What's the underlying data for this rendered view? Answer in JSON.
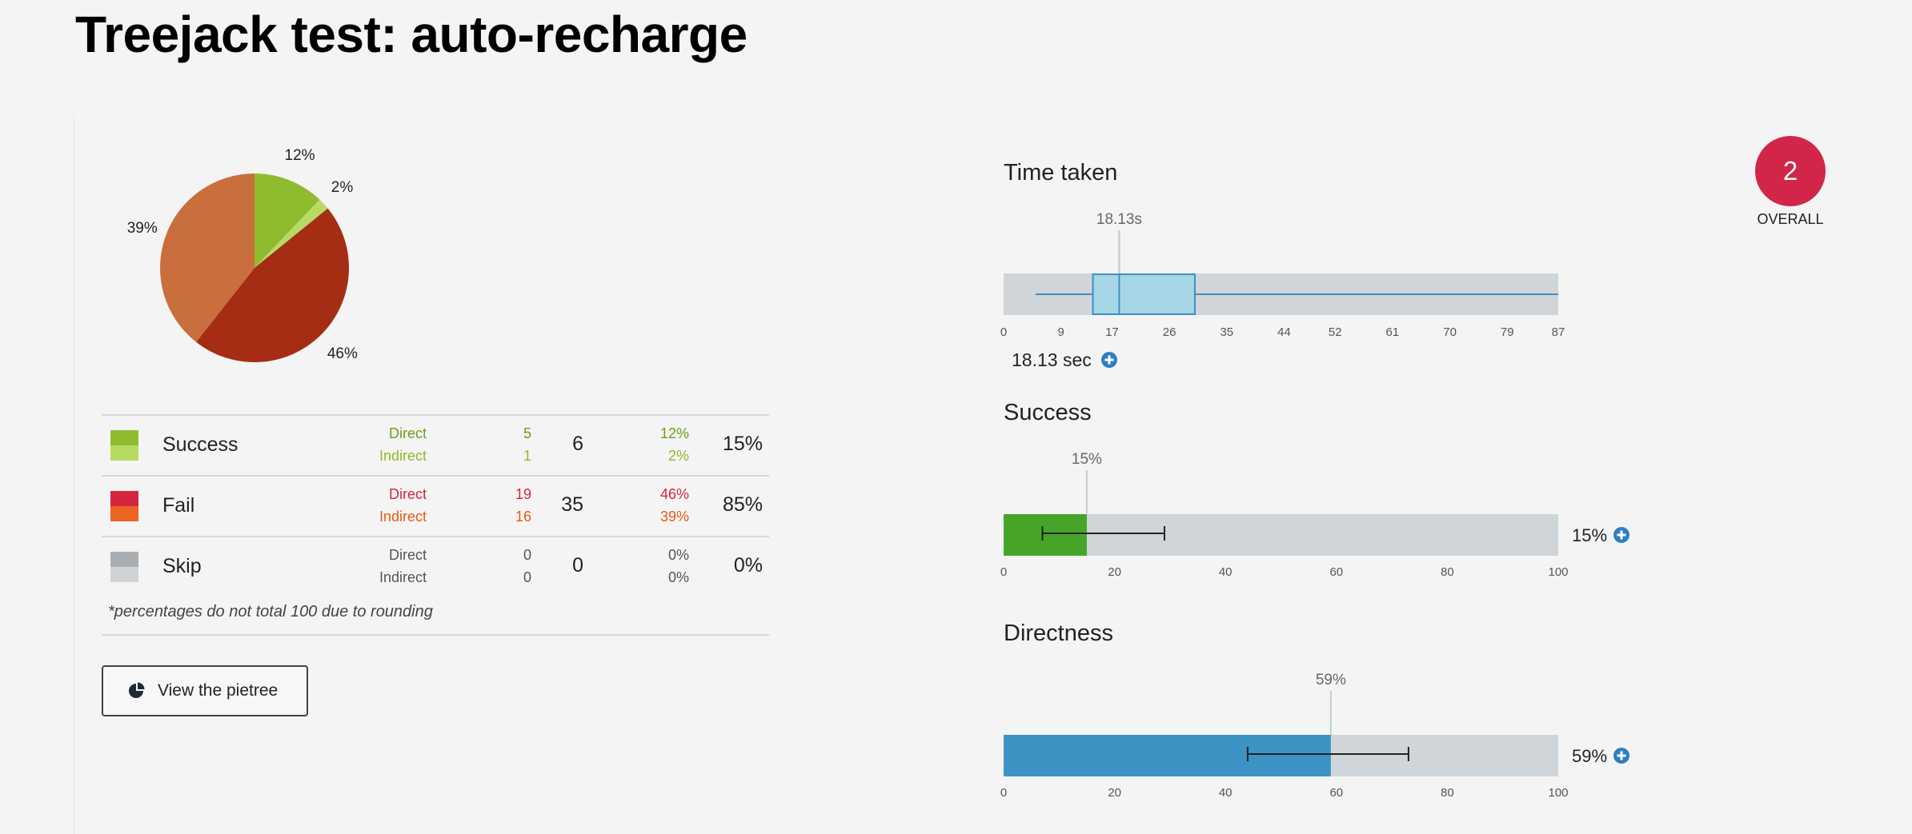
{
  "page": {
    "title": "Treejack test: auto-recharge"
  },
  "pie": {
    "slices": [
      {
        "label": "12%",
        "value": 12,
        "color": "#8fbc2e"
      },
      {
        "label": "2%",
        "value": 2,
        "color": "#b8da63"
      },
      {
        "label": "46%",
        "value": 46,
        "color": "#a52d14"
      },
      {
        "label": "39%",
        "value": 39,
        "color": "#c96e3d"
      }
    ]
  },
  "results": {
    "rows": [
      {
        "label": "Success",
        "swatch": [
          "#8fbc2e",
          "#b8da63"
        ],
        "direct_label": "Direct",
        "indirect_label": "Indirect",
        "direct_count": "5",
        "indirect_count": "1",
        "total": "6",
        "direct_pct": "12%",
        "indirect_pct": "2%",
        "total_pct": "15%",
        "direct_color": "#6e9e1a",
        "indirect_color": "#8dbb2a"
      },
      {
        "label": "Fail",
        "swatch": [
          "#d6263f",
          "#ec6324"
        ],
        "direct_label": "Direct",
        "indirect_label": "Indirect",
        "direct_count": "19",
        "indirect_count": "16",
        "total": "35",
        "direct_pct": "46%",
        "indirect_pct": "39%",
        "total_pct": "85%",
        "direct_color": "#d0263f",
        "indirect_color": "#e55b16"
      },
      {
        "label": "Skip",
        "swatch": [
          "#a9aeb2",
          "#cfd3d6"
        ],
        "direct_label": "Direct",
        "indirect_label": "Indirect",
        "direct_count": "0",
        "indirect_count": "0",
        "total": "0",
        "direct_pct": "0%",
        "indirect_pct": "0%",
        "total_pct": "0%",
        "direct_color": "#555555",
        "indirect_color": "#555555"
      }
    ],
    "footnote": "*percentages do not total 100 due to rounding",
    "pietree_button": "View the pietree"
  },
  "overall": {
    "score": "2",
    "label": "OVERALL"
  },
  "chart_data": [
    {
      "type": "boxplot",
      "title": "Time taken",
      "xticks": [
        0,
        9,
        17,
        26,
        35,
        44,
        52,
        61,
        70,
        79,
        87
      ],
      "xlim": [
        0,
        87
      ],
      "whisker_low": 5,
      "q1": 14,
      "median": 18.13,
      "q3": 30,
      "whisker_high": 87,
      "median_label": "18.13s",
      "readout": "18.13 sec",
      "colors": {
        "box": "#a6d5e6",
        "stroke": "#3d8fc4",
        "track": "#cfd5d8"
      }
    },
    {
      "type": "bar",
      "title": "Success",
      "value": 15,
      "value_label": "15%",
      "error_low": 7,
      "error_high": 29,
      "xticks": [
        0,
        20,
        40,
        60,
        80,
        100
      ],
      "xlim": [
        0,
        100
      ],
      "readout": "15%",
      "colors": {
        "fill": "#46a529",
        "track": "#cfd5d8"
      }
    },
    {
      "type": "bar",
      "title": "Directness",
      "value": 59,
      "value_label": "59%",
      "error_low": 44,
      "error_high": 73,
      "xticks": [
        0,
        20,
        40,
        60,
        80,
        100
      ],
      "xlim": [
        0,
        100
      ],
      "readout": "59%",
      "colors": {
        "fill": "#3d93c3",
        "track": "#cfd5d8"
      }
    }
  ]
}
